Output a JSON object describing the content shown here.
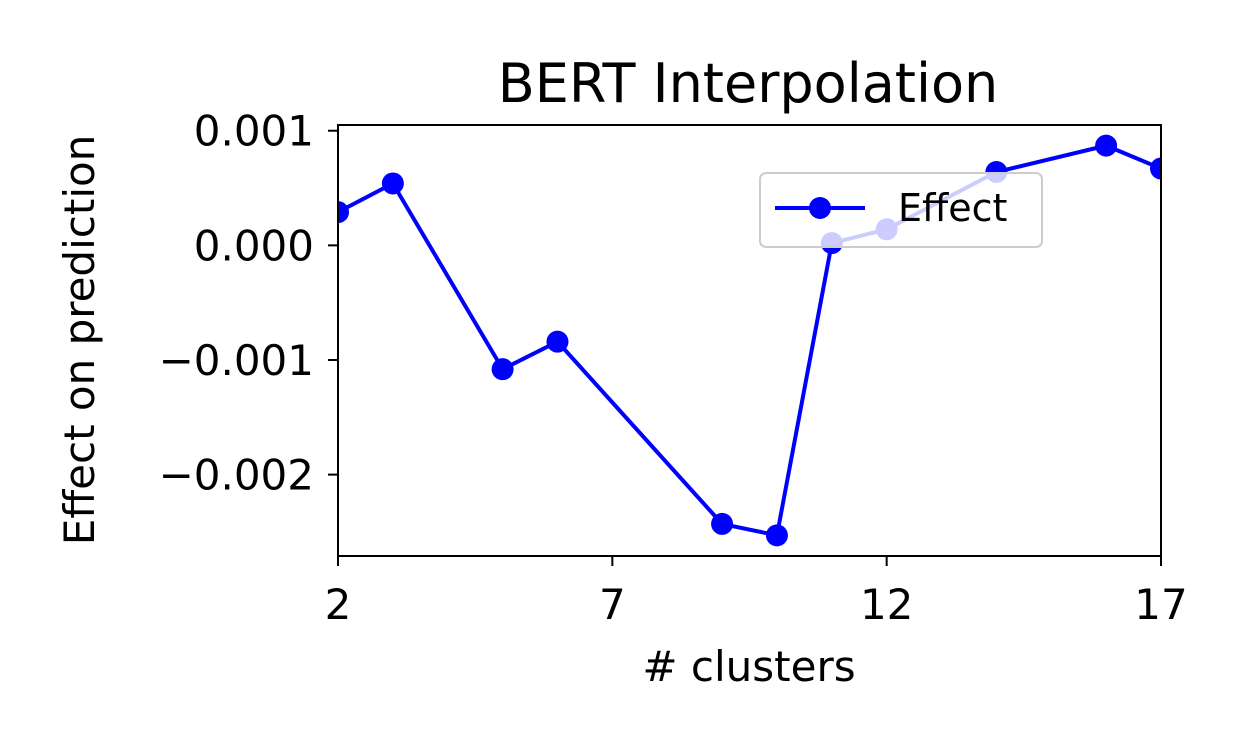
{
  "chart_data": {
    "type": "line",
    "title": "BERT Interpolation",
    "xlabel": "# clusters",
    "ylabel": "Effect on prediction",
    "xlim": [
      2,
      17
    ],
    "ylim": [
      -0.00271,
      0.00105
    ],
    "xticks": [
      2,
      7,
      12,
      17
    ],
    "xtick_labels": [
      "2",
      "7",
      "12",
      "17"
    ],
    "yticks": [
      0.001,
      0.0,
      -0.001,
      -0.002
    ],
    "ytick_labels": [
      "0.001",
      "0.000",
      "−0.001",
      "−0.002"
    ],
    "grid": false,
    "legend": {
      "position": "upper-right",
      "entries": [
        "Effect"
      ]
    },
    "series": [
      {
        "name": "Effect",
        "color": "#0000ff",
        "marker": "circle",
        "x": [
          2,
          3,
          5,
          6,
          9,
          10,
          11,
          12,
          14,
          16,
          17
        ],
        "y": [
          0.00029,
          0.00054,
          -0.00108,
          -0.00084,
          -0.00243,
          -0.00253,
          2e-05,
          0.00014,
          0.00064,
          0.00087,
          0.00067
        ]
      }
    ]
  }
}
